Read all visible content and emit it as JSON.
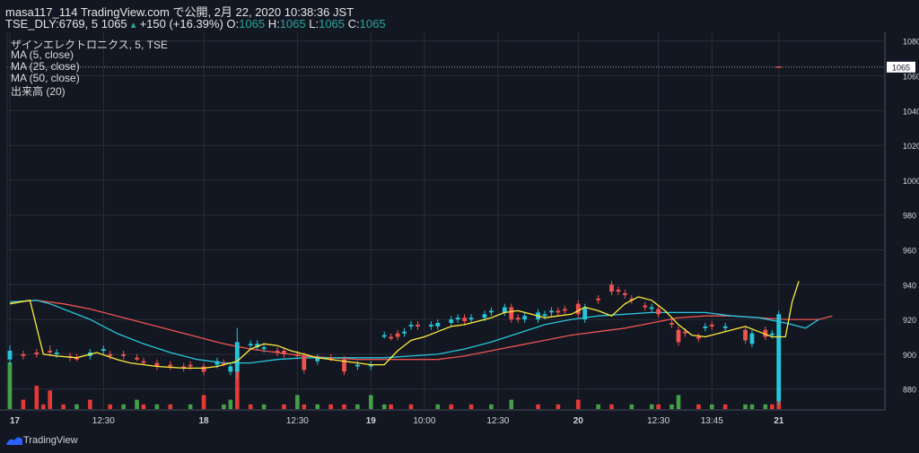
{
  "header": {
    "publisher": "masa117_114 TradingView.com で公開, 2月 22, 2020 10:38:36 JST",
    "symbol": "TSE_DLY:6769, 5",
    "last": "1065",
    "change": "+150 (+16.39%)",
    "o_label": "O:",
    "o": "1065",
    "h_label": "H:",
    "h": "1065",
    "l_label": "L:",
    "l": "1065",
    "c_label": "C:",
    "c": "1065"
  },
  "legend": {
    "title": "ザインエレクトロニクス, 5, TSE",
    "ma5": "MA (5, close)",
    "ma25": "MA (25, close)",
    "ma50": "MA (50, close)",
    "volume": "出来高 (20)"
  },
  "footer": {
    "brand": "TradingView"
  },
  "colors": {
    "background": "#131722",
    "grid": "#2a2e39",
    "axis_text": "#d1d4dc",
    "up": "#26c6da",
    "down": "#ef5350",
    "ma5": "#ffeb3b",
    "ma25": "#26c6da",
    "ma50": "#ef5350",
    "vol_up": "#43a047",
    "vol_down": "#e53935"
  },
  "chart_data": {
    "type": "candlestick",
    "ylim": [
      868,
      1085
    ],
    "y_ticks": [
      880,
      900,
      920,
      940,
      960,
      980,
      1000,
      1020,
      1040,
      1060,
      1080
    ],
    "price_line": 1065,
    "price_label": "1065",
    "bar_count": 125,
    "x_ticks": [
      {
        "label": "17",
        "i": 0,
        "bold": true
      },
      {
        "label": "12:30",
        "i": 14,
        "bold": false
      },
      {
        "label": "18",
        "i": 29,
        "bold": true
      },
      {
        "label": "12:30",
        "i": 43,
        "bold": false
      },
      {
        "label": "19",
        "i": 54,
        "bold": true
      },
      {
        "label": "10:00",
        "i": 62,
        "bold": false
      },
      {
        "label": "12:30",
        "i": 73,
        "bold": false
      },
      {
        "label": "20",
        "i": 85,
        "bold": true
      },
      {
        "label": "12:30",
        "i": 97,
        "bold": false
      },
      {
        "label": "13:45",
        "i": 105,
        "bold": false
      },
      {
        "label": "21",
        "i": 115,
        "bold": true
      }
    ],
    "candles": [
      {
        "i": 0,
        "o": 897,
        "c": 902,
        "h": 905,
        "l": 894
      },
      {
        "i": 2,
        "o": 900,
        "c": 899,
        "h": 902,
        "l": 897
      },
      {
        "i": 4,
        "o": 901,
        "c": 900,
        "h": 903,
        "l": 898
      },
      {
        "i": 6,
        "o": 902,
        "c": 901,
        "h": 905,
        "l": 899
      },
      {
        "i": 7,
        "o": 900,
        "c": 901,
        "h": 903,
        "l": 898
      },
      {
        "i": 9,
        "o": 899,
        "c": 898,
        "h": 901,
        "l": 896
      },
      {
        "i": 10,
        "o": 898,
        "c": 897,
        "h": 900,
        "l": 896
      },
      {
        "i": 12,
        "o": 899,
        "c": 901,
        "h": 903,
        "l": 897
      },
      {
        "i": 14,
        "o": 902,
        "c": 903,
        "h": 905,
        "l": 900
      },
      {
        "i": 15,
        "o": 900,
        "c": 899,
        "h": 902,
        "l": 897
      },
      {
        "i": 17,
        "o": 900,
        "c": 899,
        "h": 902,
        "l": 897
      },
      {
        "i": 19,
        "o": 898,
        "c": 897,
        "h": 900,
        "l": 896
      },
      {
        "i": 20,
        "o": 896,
        "c": 895,
        "h": 898,
        "l": 894
      },
      {
        "i": 22,
        "o": 895,
        "c": 893,
        "h": 897,
        "l": 891
      },
      {
        "i": 24,
        "o": 894,
        "c": 893,
        "h": 896,
        "l": 891
      },
      {
        "i": 26,
        "o": 893,
        "c": 892,
        "h": 895,
        "l": 890
      },
      {
        "i": 27,
        "o": 894,
        "c": 893,
        "h": 896,
        "l": 891
      },
      {
        "i": 29,
        "o": 893,
        "c": 890,
        "h": 895,
        "l": 888
      },
      {
        "i": 31,
        "o": 894,
        "c": 896,
        "h": 898,
        "l": 892
      },
      {
        "i": 32,
        "o": 895,
        "c": 894,
        "h": 897,
        "l": 893
      },
      {
        "i": 33,
        "o": 890,
        "c": 893,
        "h": 895,
        "l": 888
      },
      {
        "i": 34,
        "o": 890,
        "c": 907,
        "h": 915,
        "l": 886
      },
      {
        "i": 36,
        "o": 905,
        "c": 906,
        "h": 908,
        "l": 903
      },
      {
        "i": 37,
        "o": 904,
        "c": 906,
        "h": 908,
        "l": 902
      },
      {
        "i": 38,
        "o": 903,
        "c": 904,
        "h": 906,
        "l": 901
      },
      {
        "i": 40,
        "o": 902,
        "c": 901,
        "h": 904,
        "l": 899
      },
      {
        "i": 41,
        "o": 902,
        "c": 900,
        "h": 904,
        "l": 898
      },
      {
        "i": 43,
        "o": 900,
        "c": 899,
        "h": 902,
        "l": 897
      },
      {
        "i": 44,
        "o": 899,
        "c": 891,
        "h": 901,
        "l": 889
      },
      {
        "i": 46,
        "o": 896,
        "c": 898,
        "h": 900,
        "l": 894
      },
      {
        "i": 48,
        "o": 898,
        "c": 897,
        "h": 900,
        "l": 896
      },
      {
        "i": 50,
        "o": 897,
        "c": 890,
        "h": 899,
        "l": 888
      },
      {
        "i": 52,
        "o": 893,
        "c": 894,
        "h": 896,
        "l": 891
      },
      {
        "i": 54,
        "o": 893,
        "c": 894,
        "h": 896,
        "l": 891
      },
      {
        "i": 56,
        "o": 910,
        "c": 911,
        "h": 913,
        "l": 909
      },
      {
        "i": 57,
        "o": 910,
        "c": 909,
        "h": 912,
        "l": 908
      },
      {
        "i": 58,
        "o": 912,
        "c": 910,
        "h": 914,
        "l": 908
      },
      {
        "i": 59,
        "o": 912,
        "c": 913,
        "h": 915,
        "l": 910
      },
      {
        "i": 60,
        "o": 916,
        "c": 917,
        "h": 919,
        "l": 914
      },
      {
        "i": 61,
        "o": 917,
        "c": 916,
        "h": 919,
        "l": 914
      },
      {
        "i": 63,
        "o": 916,
        "c": 917,
        "h": 919,
        "l": 914
      },
      {
        "i": 64,
        "o": 916,
        "c": 918,
        "h": 920,
        "l": 914
      },
      {
        "i": 66,
        "o": 918,
        "c": 920,
        "h": 922,
        "l": 916
      },
      {
        "i": 67,
        "o": 920,
        "c": 921,
        "h": 923,
        "l": 918
      },
      {
        "i": 68,
        "o": 921,
        "c": 919,
        "h": 923,
        "l": 917
      },
      {
        "i": 69,
        "o": 920,
        "c": 921,
        "h": 923,
        "l": 918
      },
      {
        "i": 71,
        "o": 921,
        "c": 923,
        "h": 925,
        "l": 919
      },
      {
        "i": 72,
        "o": 924,
        "c": 925,
        "h": 927,
        "l": 922
      },
      {
        "i": 74,
        "o": 924,
        "c": 927,
        "h": 929,
        "l": 922
      },
      {
        "i": 75,
        "o": 927,
        "c": 920,
        "h": 929,
        "l": 918
      },
      {
        "i": 76,
        "o": 921,
        "c": 920,
        "h": 923,
        "l": 918
      },
      {
        "i": 77,
        "o": 920,
        "c": 922,
        "h": 924,
        "l": 918
      },
      {
        "i": 79,
        "o": 920,
        "c": 924,
        "h": 926,
        "l": 918
      },
      {
        "i": 80,
        "o": 922,
        "c": 923,
        "h": 925,
        "l": 920
      },
      {
        "i": 81,
        "o": 924,
        "c": 925,
        "h": 927,
        "l": 922
      },
      {
        "i": 82,
        "o": 925,
        "c": 924,
        "h": 927,
        "l": 922
      },
      {
        "i": 83,
        "o": 926,
        "c": 925,
        "h": 928,
        "l": 923
      },
      {
        "i": 85,
        "o": 929,
        "c": 923,
        "h": 931,
        "l": 921
      },
      {
        "i": 86,
        "o": 920,
        "c": 927,
        "h": 929,
        "l": 918
      },
      {
        "i": 88,
        "o": 932,
        "c": 931,
        "h": 934,
        "l": 929
      },
      {
        "i": 90,
        "o": 940,
        "c": 936,
        "h": 942,
        "l": 934
      },
      {
        "i": 91,
        "o": 937,
        "c": 936,
        "h": 939,
        "l": 934
      },
      {
        "i": 92,
        "o": 935,
        "c": 934,
        "h": 937,
        "l": 932
      },
      {
        "i": 93,
        "o": 932,
        "c": 931,
        "h": 934,
        "l": 929
      },
      {
        "i": 95,
        "o": 928,
        "c": 927,
        "h": 930,
        "l": 925
      },
      {
        "i": 96,
        "o": 926,
        "c": 927,
        "h": 929,
        "l": 924
      },
      {
        "i": 97,
        "o": 926,
        "c": 923,
        "h": 928,
        "l": 921
      },
      {
        "i": 99,
        "o": 918,
        "c": 917,
        "h": 920,
        "l": 915
      },
      {
        "i": 100,
        "o": 914,
        "c": 907,
        "h": 916,
        "l": 905
      },
      {
        "i": 101,
        "o": 913,
        "c": 912,
        "h": 915,
        "l": 910
      },
      {
        "i": 103,
        "o": 910,
        "c": 909,
        "h": 912,
        "l": 907
      },
      {
        "i": 104,
        "o": 915,
        "c": 916,
        "h": 918,
        "l": 913
      },
      {
        "i": 105,
        "o": 917,
        "c": 916,
        "h": 919,
        "l": 914
      },
      {
        "i": 107,
        "o": 915,
        "c": 916,
        "h": 918,
        "l": 913
      },
      {
        "i": 110,
        "o": 914,
        "c": 908,
        "h": 916,
        "l": 906
      },
      {
        "i": 111,
        "o": 906,
        "c": 912,
        "h": 914,
        "l": 904
      },
      {
        "i": 113,
        "o": 914,
        "c": 910,
        "h": 916,
        "l": 908
      },
      {
        "i": 114,
        "o": 911,
        "c": 912,
        "h": 914,
        "l": 909
      },
      {
        "i": 115,
        "o": 873,
        "c": 923,
        "h": 925,
        "l": 871
      }
    ],
    "ma5": [
      [
        0,
        929
      ],
      [
        3,
        931
      ],
      [
        5,
        900
      ],
      [
        7,
        899
      ],
      [
        10,
        898
      ],
      [
        13,
        901
      ],
      [
        16,
        897
      ],
      [
        18,
        895
      ],
      [
        22,
        893
      ],
      [
        26,
        892
      ],
      [
        29,
        892
      ],
      [
        31,
        893
      ],
      [
        34,
        896
      ],
      [
        36,
        903
      ],
      [
        38,
        906
      ],
      [
        40,
        905
      ],
      [
        42,
        902
      ],
      [
        44,
        900
      ],
      [
        46,
        898
      ],
      [
        48,
        897
      ],
      [
        50,
        896
      ],
      [
        52,
        895
      ],
      [
        54,
        894
      ],
      [
        56,
        894
      ],
      [
        58,
        902
      ],
      [
        60,
        908
      ],
      [
        62,
        910
      ],
      [
        64,
        913
      ],
      [
        66,
        916
      ],
      [
        68,
        917
      ],
      [
        70,
        919
      ],
      [
        72,
        921
      ],
      [
        74,
        924
      ],
      [
        76,
        925
      ],
      [
        78,
        923
      ],
      [
        80,
        921
      ],
      [
        82,
        922
      ],
      [
        84,
        923
      ],
      [
        86,
        927
      ],
      [
        88,
        925
      ],
      [
        90,
        922
      ],
      [
        92,
        929
      ],
      [
        94,
        933
      ],
      [
        96,
        931
      ],
      [
        98,
        925
      ],
      [
        100,
        917
      ],
      [
        102,
        911
      ],
      [
        104,
        910
      ],
      [
        106,
        912
      ],
      [
        108,
        914
      ],
      [
        110,
        916
      ],
      [
        112,
        913
      ],
      [
        114,
        910
      ],
      [
        116,
        910
      ],
      [
        117,
        930
      ],
      [
        118,
        942
      ]
    ],
    "ma25": [
      [
        0,
        930
      ],
      [
        4,
        931
      ],
      [
        6,
        929
      ],
      [
        8,
        926
      ],
      [
        12,
        920
      ],
      [
        16,
        912
      ],
      [
        20,
        906
      ],
      [
        24,
        901
      ],
      [
        28,
        897
      ],
      [
        32,
        895
      ],
      [
        36,
        895
      ],
      [
        40,
        897
      ],
      [
        44,
        898
      ],
      [
        48,
        898
      ],
      [
        52,
        898
      ],
      [
        56,
        898
      ],
      [
        60,
        899
      ],
      [
        64,
        900
      ],
      [
        68,
        903
      ],
      [
        72,
        907
      ],
      [
        76,
        912
      ],
      [
        80,
        917
      ],
      [
        84,
        920
      ],
      [
        88,
        922
      ],
      [
        92,
        923
      ],
      [
        96,
        924
      ],
      [
        100,
        924
      ],
      [
        104,
        924
      ],
      [
        108,
        922
      ],
      [
        112,
        921
      ],
      [
        116,
        918
      ],
      [
        119,
        915
      ],
      [
        121,
        920
      ]
    ],
    "ma50": [
      [
        0,
        930
      ],
      [
        4,
        931
      ],
      [
        8,
        929
      ],
      [
        12,
        926
      ],
      [
        16,
        922
      ],
      [
        20,
        918
      ],
      [
        24,
        914
      ],
      [
        28,
        910
      ],
      [
        32,
        906
      ],
      [
        36,
        903
      ],
      [
        40,
        901
      ],
      [
        44,
        899
      ],
      [
        48,
        898
      ],
      [
        52,
        897
      ],
      [
        56,
        897
      ],
      [
        60,
        897
      ],
      [
        64,
        897
      ],
      [
        68,
        899
      ],
      [
        72,
        902
      ],
      [
        76,
        905
      ],
      [
        80,
        908
      ],
      [
        84,
        911
      ],
      [
        88,
        913
      ],
      [
        92,
        915
      ],
      [
        96,
        918
      ],
      [
        100,
        921
      ],
      [
        104,
        922
      ],
      [
        108,
        922
      ],
      [
        112,
        921
      ],
      [
        116,
        920
      ],
      [
        119,
        920
      ],
      [
        121,
        920
      ],
      [
        123,
        922
      ]
    ],
    "volume_max": 10,
    "volume": [
      {
        "i": 0,
        "v": 10,
        "up": true
      },
      {
        "i": 2,
        "v": 2,
        "up": false
      },
      {
        "i": 4,
        "v": 5,
        "up": false
      },
      {
        "i": 5,
        "v": 1,
        "up": false
      },
      {
        "i": 6,
        "v": 4,
        "up": false
      },
      {
        "i": 8,
        "v": 1,
        "up": false
      },
      {
        "i": 10,
        "v": 1,
        "up": true
      },
      {
        "i": 12,
        "v": 2,
        "up": false
      },
      {
        "i": 15,
        "v": 1,
        "up": false
      },
      {
        "i": 17,
        "v": 1,
        "up": true
      },
      {
        "i": 19,
        "v": 2,
        "up": true
      },
      {
        "i": 20,
        "v": 1,
        "up": false
      },
      {
        "i": 22,
        "v": 1,
        "up": true
      },
      {
        "i": 24,
        "v": 1,
        "up": false
      },
      {
        "i": 27,
        "v": 1,
        "up": true
      },
      {
        "i": 29,
        "v": 3,
        "up": false
      },
      {
        "i": 32,
        "v": 1,
        "up": true
      },
      {
        "i": 33,
        "v": 2,
        "up": true
      },
      {
        "i": 34,
        "v": 9,
        "up": false
      },
      {
        "i": 36,
        "v": 1,
        "up": false
      },
      {
        "i": 38,
        "v": 1,
        "up": true
      },
      {
        "i": 41,
        "v": 1,
        "up": false
      },
      {
        "i": 43,
        "v": 3,
        "up": true
      },
      {
        "i": 44,
        "v": 1,
        "up": false
      },
      {
        "i": 46,
        "v": 1,
        "up": true
      },
      {
        "i": 48,
        "v": 1,
        "up": false
      },
      {
        "i": 50,
        "v": 1,
        "up": false
      },
      {
        "i": 52,
        "v": 1,
        "up": true
      },
      {
        "i": 54,
        "v": 3,
        "up": true
      },
      {
        "i": 56,
        "v": 1,
        "up": true
      },
      {
        "i": 57,
        "v": 1,
        "up": false
      },
      {
        "i": 60,
        "v": 1,
        "up": false
      },
      {
        "i": 64,
        "v": 1,
        "up": true
      },
      {
        "i": 66,
        "v": 1,
        "up": false
      },
      {
        "i": 69,
        "v": 1,
        "up": false
      },
      {
        "i": 72,
        "v": 1,
        "up": true
      },
      {
        "i": 75,
        "v": 2,
        "up": true
      },
      {
        "i": 79,
        "v": 1,
        "up": false
      },
      {
        "i": 82,
        "v": 1,
        "up": false
      },
      {
        "i": 85,
        "v": 2,
        "up": false
      },
      {
        "i": 88,
        "v": 1,
        "up": true
      },
      {
        "i": 90,
        "v": 1,
        "up": false
      },
      {
        "i": 93,
        "v": 1,
        "up": true
      },
      {
        "i": 96,
        "v": 1,
        "up": true
      },
      {
        "i": 97,
        "v": 1,
        "up": false
      },
      {
        "i": 99,
        "v": 1,
        "up": true
      },
      {
        "i": 100,
        "v": 3,
        "up": true
      },
      {
        "i": 103,
        "v": 1,
        "up": false
      },
      {
        "i": 105,
        "v": 1,
        "up": true
      },
      {
        "i": 107,
        "v": 1,
        "up": false
      },
      {
        "i": 110,
        "v": 1,
        "up": true
      },
      {
        "i": 111,
        "v": 1,
        "up": true
      },
      {
        "i": 113,
        "v": 1,
        "up": true
      },
      {
        "i": 114,
        "v": 1,
        "up": false
      },
      {
        "i": 115,
        "v": 10,
        "up": false
      }
    ]
  }
}
